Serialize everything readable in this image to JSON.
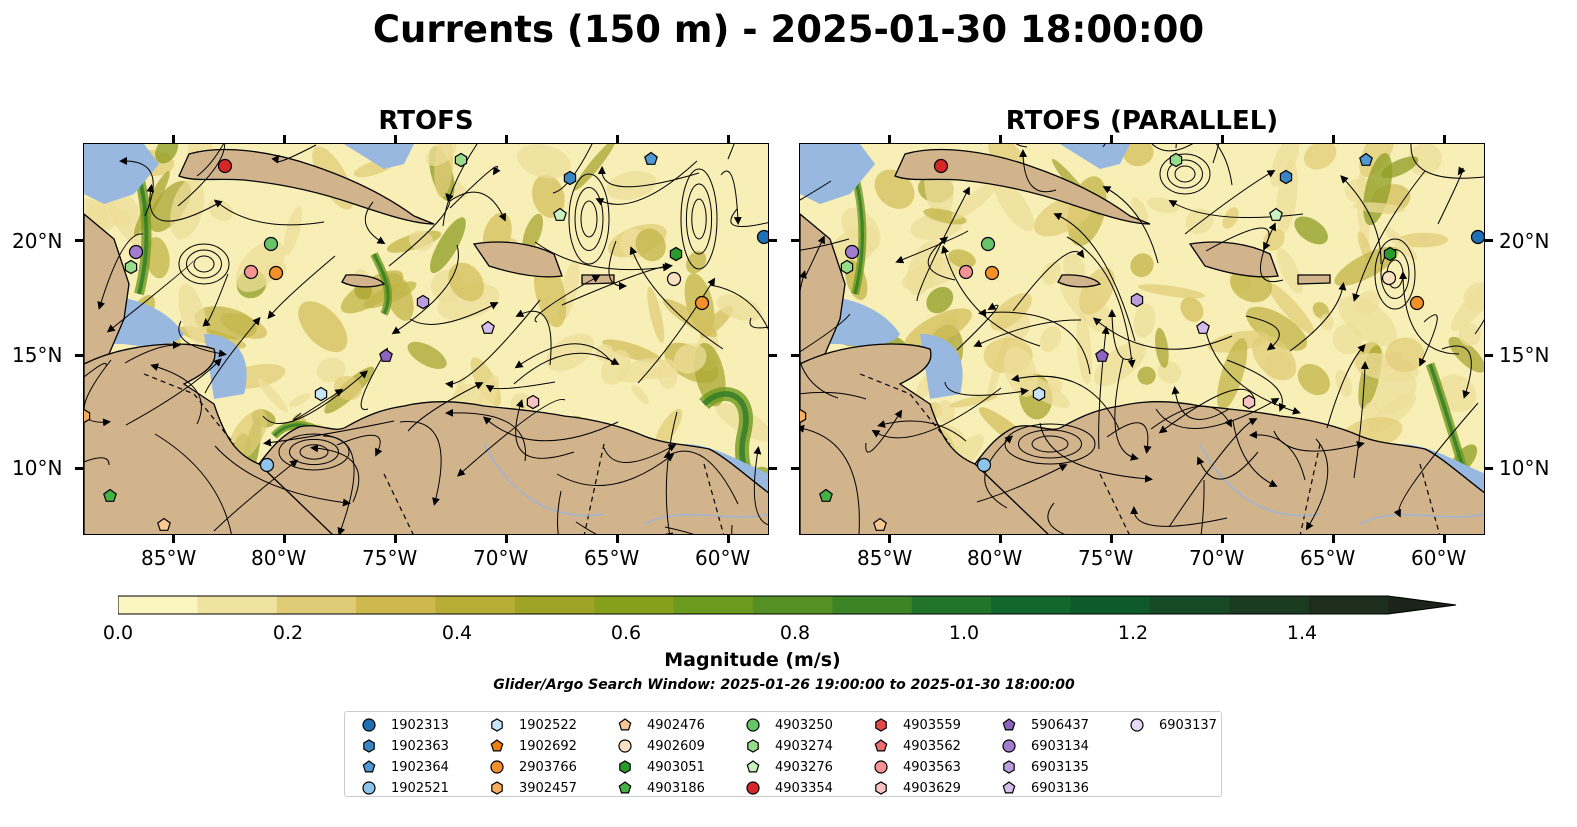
{
  "title": "Currents (150 m) - 2025-01-30 18:00:00",
  "panels": [
    {
      "title": "RTOFS"
    },
    {
      "title": "RTOFS (PARALLEL)"
    }
  ],
  "axes": {
    "lon_labels": [
      "85°W",
      "80°W",
      "75°W",
      "70°W",
      "65°W",
      "60°W"
    ],
    "lat_labels": [
      "20°N",
      "15°N",
      "10°N"
    ]
  },
  "colorbar": {
    "label": "Magnitude (m/s)",
    "ticks": [
      "0.0",
      "0.2",
      "0.4",
      "0.6",
      "0.8",
      "1.0",
      "1.2",
      "1.4"
    ],
    "colors": [
      "#fbf5c0",
      "#f0e2a0",
      "#e0cc77",
      "#cfb94e",
      "#b8ad36",
      "#9fa428",
      "#86a01e",
      "#6c9a1e",
      "#549023",
      "#3d8427",
      "#23742b",
      "#12672d",
      "#0f5a2a",
      "#164a26",
      "#1c3c22",
      "#1d2f1c"
    ]
  },
  "search_window": "Glider/Argo Search Window: 2025-01-26 19:00:00 to 2025-01-30 18:00:00",
  "legend": [
    {
      "id": "1902313",
      "shape": "circle",
      "color": "#1f6fb4"
    },
    {
      "id": "1902363",
      "shape": "hexagon",
      "color": "#3a86c4"
    },
    {
      "id": "1902364",
      "shape": "pentagon",
      "color": "#4f98d3"
    },
    {
      "id": "1902521",
      "shape": "circle",
      "color": "#8ec3ec"
    },
    {
      "id": "1902522",
      "shape": "hexagon",
      "color": "#c6e3f7"
    },
    {
      "id": "1902692",
      "shape": "pentagon",
      "color": "#ee7f11"
    },
    {
      "id": "2903766",
      "shape": "circle",
      "color": "#f4902b"
    },
    {
      "id": "3902457",
      "shape": "hexagon",
      "color": "#f7ad5e"
    },
    {
      "id": "4902476",
      "shape": "pentagon",
      "color": "#f8c894"
    },
    {
      "id": "4902609",
      "shape": "circle",
      "color": "#fbe0c2"
    },
    {
      "id": "4903051",
      "shape": "hexagon",
      "color": "#2a9a2a"
    },
    {
      "id": "4903186",
      "shape": "pentagon",
      "color": "#45b045"
    },
    {
      "id": "4903250",
      "shape": "circle",
      "color": "#68c468"
    },
    {
      "id": "4903274",
      "shape": "hexagon",
      "color": "#98dc8a"
    },
    {
      "id": "4903276",
      "shape": "pentagon",
      "color": "#c8f2c0"
    },
    {
      "id": "4903354",
      "shape": "circle",
      "color": "#d62728"
    },
    {
      "id": "4903559",
      "shape": "hexagon",
      "color": "#e34a4a"
    },
    {
      "id": "4903562",
      "shape": "pentagon",
      "color": "#ec6e6e"
    },
    {
      "id": "4903563",
      "shape": "circle",
      "color": "#f39393"
    },
    {
      "id": "4903629",
      "shape": "hexagon",
      "color": "#f9c2c2"
    },
    {
      "id": "5906437",
      "shape": "pentagon",
      "color": "#8a64bf"
    },
    {
      "id": "6903134",
      "shape": "circle",
      "color": "#a27dcf"
    },
    {
      "id": "6903135",
      "shape": "hexagon",
      "color": "#bb9ddf"
    },
    {
      "id": "6903136",
      "shape": "pentagon",
      "color": "#d2bdec"
    },
    {
      "id": "6903137",
      "shape": "circle",
      "color": "#e6d8f5"
    }
  ],
  "map_style": {
    "land": "#d2b48c",
    "shallow_water": "#98b8e0",
    "coast": "#000000",
    "streamline": "#000000"
  }
}
